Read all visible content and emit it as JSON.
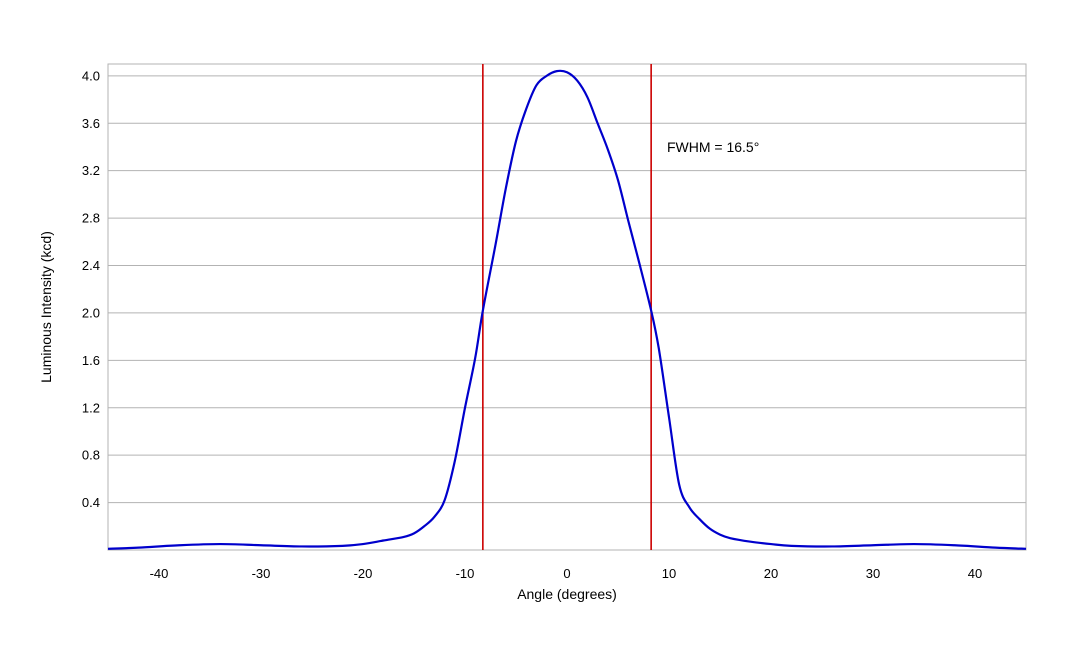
{
  "chart_data": {
    "type": "line",
    "title": "",
    "xlabel": "Angle (degrees)",
    "ylabel": "Luminous Intensity (kcd)",
    "xlim": [
      -45,
      45
    ],
    "ylim": [
      0,
      4.1
    ],
    "x_ticks": [
      -40,
      -30,
      -20,
      -10,
      0,
      10,
      20,
      30,
      40
    ],
    "x_tick_labels": [
      "-40",
      "-30",
      "-20",
      "-10",
      "0",
      "10",
      "20",
      "30",
      "40"
    ],
    "y_ticks": [
      0.4,
      0.8,
      1.2,
      1.6,
      2.0,
      2.4,
      2.8,
      3.2,
      3.6,
      4.0
    ],
    "y_tick_labels": [
      "0.4",
      "0.8",
      "1.2",
      "1.6",
      "2.0",
      "2.4",
      "2.8",
      "3.2",
      "3.6",
      "4.0"
    ],
    "grid": true,
    "series": [
      {
        "color": "#0000cc",
        "x": [
          -45,
          -42,
          -38,
          -34,
          -30,
          -26,
          -22,
          -20,
          -18,
          -16,
          -15,
          -14,
          -13,
          -12,
          -11,
          -10,
          -9,
          -8.25,
          -7,
          -6,
          -5,
          -4,
          -3,
          -2,
          -1,
          0,
          1,
          2,
          3,
          4,
          5,
          6,
          7,
          8.25,
          9,
          10,
          11,
          12,
          13,
          14,
          15,
          16,
          18,
          20,
          22,
          26,
          30,
          34,
          38,
          42,
          45
        ],
        "y": [
          0.01,
          0.02,
          0.04,
          0.05,
          0.04,
          0.03,
          0.035,
          0.05,
          0.08,
          0.11,
          0.14,
          0.2,
          0.28,
          0.42,
          0.75,
          1.2,
          1.62,
          2.02,
          2.58,
          3.05,
          3.45,
          3.72,
          3.92,
          4.0,
          4.04,
          4.03,
          3.96,
          3.82,
          3.6,
          3.38,
          3.12,
          2.78,
          2.45,
          2.02,
          1.7,
          1.12,
          0.55,
          0.36,
          0.26,
          0.18,
          0.13,
          0.1,
          0.07,
          0.05,
          0.035,
          0.03,
          0.04,
          0.05,
          0.04,
          0.02,
          0.01
        ]
      }
    ],
    "reference_lines": [
      {
        "axis": "x",
        "value": -8.25,
        "color": "#cc0000"
      },
      {
        "axis": "x",
        "value": 8.25,
        "color": "#cc0000"
      }
    ],
    "annotation": {
      "text": "FWHM = 16.5°",
      "x": 9.8,
      "y": 3.4
    }
  }
}
